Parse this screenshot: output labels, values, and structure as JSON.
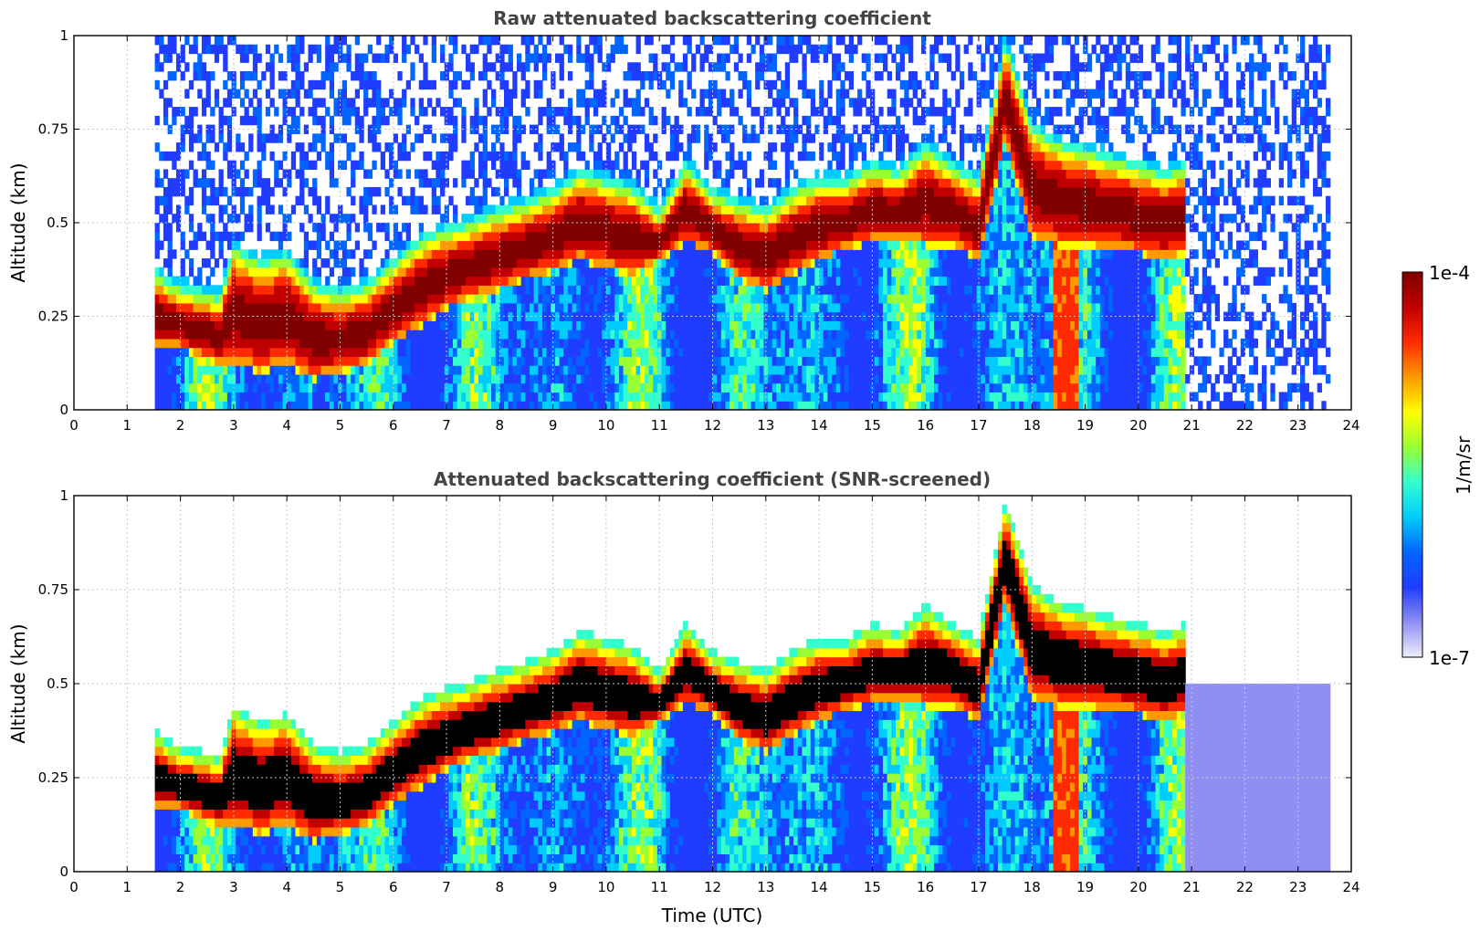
{
  "chart_data": [
    {
      "type": "heatmap",
      "title": "Raw attenuated backscattering coefficient",
      "xlabel": "",
      "ylabel": "Altitude (km)",
      "xlim": [
        0,
        24
      ],
      "ylim": [
        0,
        1
      ],
      "x_ticks": [
        "0",
        "1",
        "2",
        "3",
        "4",
        "5",
        "6",
        "7",
        "8",
        "9",
        "10",
        "11",
        "12",
        "13",
        "14",
        "15",
        "16",
        "17",
        "18",
        "19",
        "20",
        "21",
        "22",
        "23",
        "24"
      ],
      "y_ticks": [
        "0",
        "0.25",
        "0.5",
        "0.75",
        "1"
      ],
      "grid": true,
      "data_start_time": 1.55,
      "data_end_time": 23.6,
      "gap_interval": [
        2.7,
        2.75
      ],
      "layer_top_km": [
        [
          1.6,
          0.33
        ],
        [
          1.9,
          0.3
        ],
        [
          2.75,
          0.27
        ],
        [
          3.0,
          0.4
        ],
        [
          3.5,
          0.36
        ],
        [
          4.0,
          0.38
        ],
        [
          4.5,
          0.3
        ],
        [
          5.0,
          0.28
        ],
        [
          5.5,
          0.3
        ],
        [
          6.0,
          0.36
        ],
        [
          6.5,
          0.42
        ],
        [
          7.0,
          0.45
        ],
        [
          7.5,
          0.47
        ],
        [
          8.0,
          0.5
        ],
        [
          8.5,
          0.52
        ],
        [
          9.0,
          0.55
        ],
        [
          9.5,
          0.6
        ],
        [
          10.0,
          0.58
        ],
        [
          10.5,
          0.56
        ],
        [
          11.0,
          0.5
        ],
        [
          11.5,
          0.62
        ],
        [
          12.0,
          0.55
        ],
        [
          12.5,
          0.52
        ],
        [
          13.0,
          0.5
        ],
        [
          13.5,
          0.55
        ],
        [
          14.0,
          0.58
        ],
        [
          14.5,
          0.58
        ],
        [
          15.0,
          0.62
        ],
        [
          15.5,
          0.6
        ],
        [
          16.0,
          0.67
        ],
        [
          16.5,
          0.62
        ],
        [
          17.0,
          0.58
        ],
        [
          17.5,
          0.95
        ],
        [
          18.0,
          0.72
        ],
        [
          18.5,
          0.68
        ],
        [
          19.0,
          0.66
        ],
        [
          19.5,
          0.64
        ],
        [
          20.0,
          0.62
        ],
        [
          20.5,
          0.6
        ],
        [
          20.9,
          0.62
        ]
      ],
      "layer_base_km": [
        [
          1.6,
          0.17
        ],
        [
          1.9,
          0.17
        ],
        [
          2.75,
          0.12
        ],
        [
          3.0,
          0.12
        ],
        [
          3.5,
          0.1
        ],
        [
          4.0,
          0.12
        ],
        [
          4.5,
          0.08
        ],
        [
          5.0,
          0.1
        ],
        [
          5.5,
          0.12
        ],
        [
          6.0,
          0.18
        ],
        [
          6.5,
          0.22
        ],
        [
          7.0,
          0.27
        ],
        [
          7.5,
          0.3
        ],
        [
          8.0,
          0.32
        ],
        [
          8.5,
          0.35
        ],
        [
          9.0,
          0.37
        ],
        [
          9.5,
          0.4
        ],
        [
          10.0,
          0.38
        ],
        [
          10.5,
          0.36
        ],
        [
          11.0,
          0.4
        ],
        [
          11.5,
          0.45
        ],
        [
          12.0,
          0.42
        ],
        [
          12.5,
          0.35
        ],
        [
          13.0,
          0.32
        ],
        [
          13.5,
          0.36
        ],
        [
          14.0,
          0.4
        ],
        [
          14.5,
          0.43
        ],
        [
          15.0,
          0.45
        ],
        [
          15.5,
          0.46
        ],
        [
          16.0,
          0.44
        ],
        [
          16.5,
          0.44
        ],
        [
          17.0,
          0.4
        ],
        [
          17.5,
          0.72
        ],
        [
          18.0,
          0.46
        ],
        [
          18.5,
          0.44
        ],
        [
          19.0,
          0.44
        ],
        [
          19.5,
          0.43
        ],
        [
          20.0,
          0.42
        ],
        [
          20.5,
          0.4
        ],
        [
          20.9,
          0.42
        ]
      ]
    },
    {
      "type": "heatmap",
      "title": "Attenuated backscattering coefficient (SNR-screened)",
      "xlabel": "Time (UTC)",
      "ylabel": "Altitude (km)",
      "xlim": [
        0,
        24
      ],
      "ylim": [
        0,
        1
      ],
      "x_ticks": [
        "0",
        "1",
        "2",
        "3",
        "4",
        "5",
        "6",
        "7",
        "8",
        "9",
        "10",
        "11",
        "12",
        "13",
        "14",
        "15",
        "16",
        "17",
        "18",
        "19",
        "20",
        "21",
        "22",
        "23",
        "24"
      ],
      "y_ticks": [
        "0",
        "0.25",
        "0.5",
        "0.75",
        "1"
      ],
      "grid": true,
      "saturated_color": "#000000"
    }
  ],
  "colorbar": {
    "label": "1/m/sr",
    "max_label": "1e-4",
    "min_label": "1e-7",
    "scale": "log",
    "vmin": 1e-07,
    "vmax": 0.0001,
    "colors": [
      "#eeeefa",
      "#8f8ff3",
      "#1f3cff",
      "#0066ff",
      "#00ccff",
      "#33ffcc",
      "#99ff33",
      "#ffff00",
      "#ff9900",
      "#ff2a00",
      "#c00000",
      "#800000"
    ]
  }
}
